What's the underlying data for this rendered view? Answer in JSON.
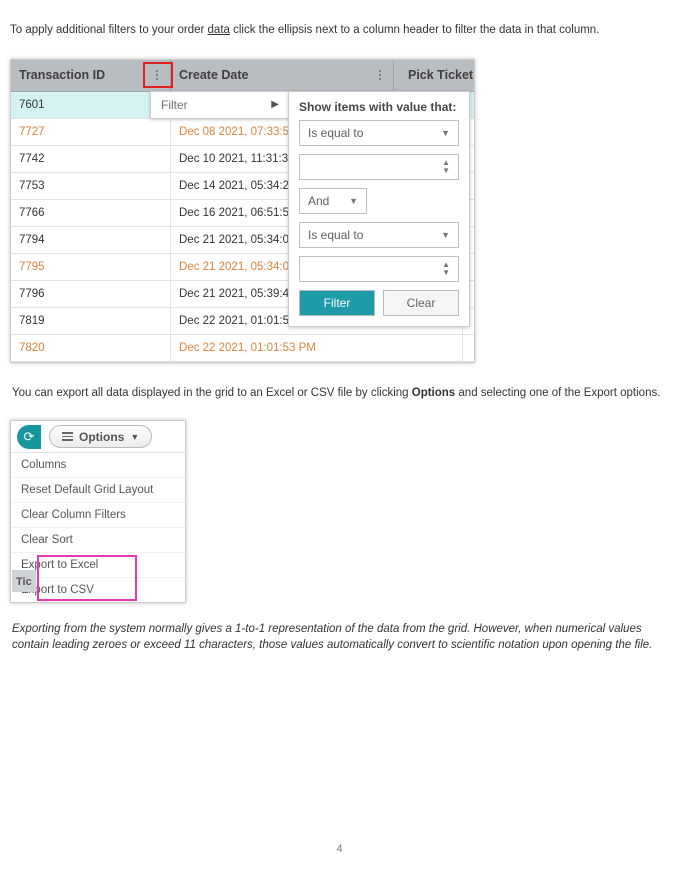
{
  "intro": {
    "prefix": "To apply additional filters to your order ",
    "underlined": "data",
    "suffix": " click the ellipsis next to a column header to filter the data in that column."
  },
  "grid": {
    "headers": {
      "transaction_id": "Transaction ID",
      "create_date": "Create Date",
      "pick_ticket": "Pick Ticket I"
    },
    "rows": [
      {
        "id": "7601",
        "date": "",
        "highlight": true,
        "orange": false
      },
      {
        "id": "7727",
        "date": "Dec 08 2021, 07:33:5",
        "highlight": false,
        "orange": true
      },
      {
        "id": "7742",
        "date": "Dec 10 2021, 11:31:3",
        "highlight": false,
        "orange": false
      },
      {
        "id": "7753",
        "date": "Dec 14 2021, 05:34:2",
        "highlight": false,
        "orange": false
      },
      {
        "id": "7766",
        "date": "Dec 16 2021, 06:51:5",
        "highlight": false,
        "orange": false
      },
      {
        "id": "7794",
        "date": "Dec 21 2021, 05:34:0",
        "highlight": false,
        "orange": false
      },
      {
        "id": "7795",
        "date": "Dec 21 2021, 05:34:0",
        "highlight": false,
        "orange": true
      },
      {
        "id": "7796",
        "date": "Dec 21 2021, 05:39:4",
        "highlight": false,
        "orange": false
      },
      {
        "id": "7819",
        "date": "Dec 22 2021, 01:01:5",
        "highlight": false,
        "orange": false
      },
      {
        "id": "7820",
        "date": "Dec 22 2021, 01:01:53 PM",
        "highlight": false,
        "orange": true
      }
    ],
    "flyout_label": "Filter",
    "panel": {
      "title": "Show items with value that:",
      "op1": "Is equal to",
      "logic": "And",
      "op2": "Is equal to",
      "filter_btn": "Filter",
      "clear_btn": "Clear"
    }
  },
  "mid": {
    "prefix": "You can export all data displayed in the grid to an Excel or CSV file by clicking ",
    "bold": "Options",
    "suffix": " and selecting one of the Export options."
  },
  "options": {
    "button_label": "Options",
    "items": [
      "Columns",
      "Reset Default Grid Layout",
      "Clear Column Filters",
      "Clear Sort",
      "Export to Excel",
      "Export to CSV"
    ],
    "stub": "Tic"
  },
  "note": "Exporting from the system normally gives a 1-to-1 representation of the data from the grid. However, when numerical values contain leading zeroes or exceed 11 characters, those values automatically convert to scientific notation upon opening the file.",
  "page_number": "4",
  "colors": {
    "header_bg": "#b8bdc1",
    "highlight_row": "#d4f2f2",
    "orange_text": "#d9843a",
    "red_box": "#e02020",
    "pink_box": "#e23bb0",
    "teal": "#1e9aa8"
  }
}
